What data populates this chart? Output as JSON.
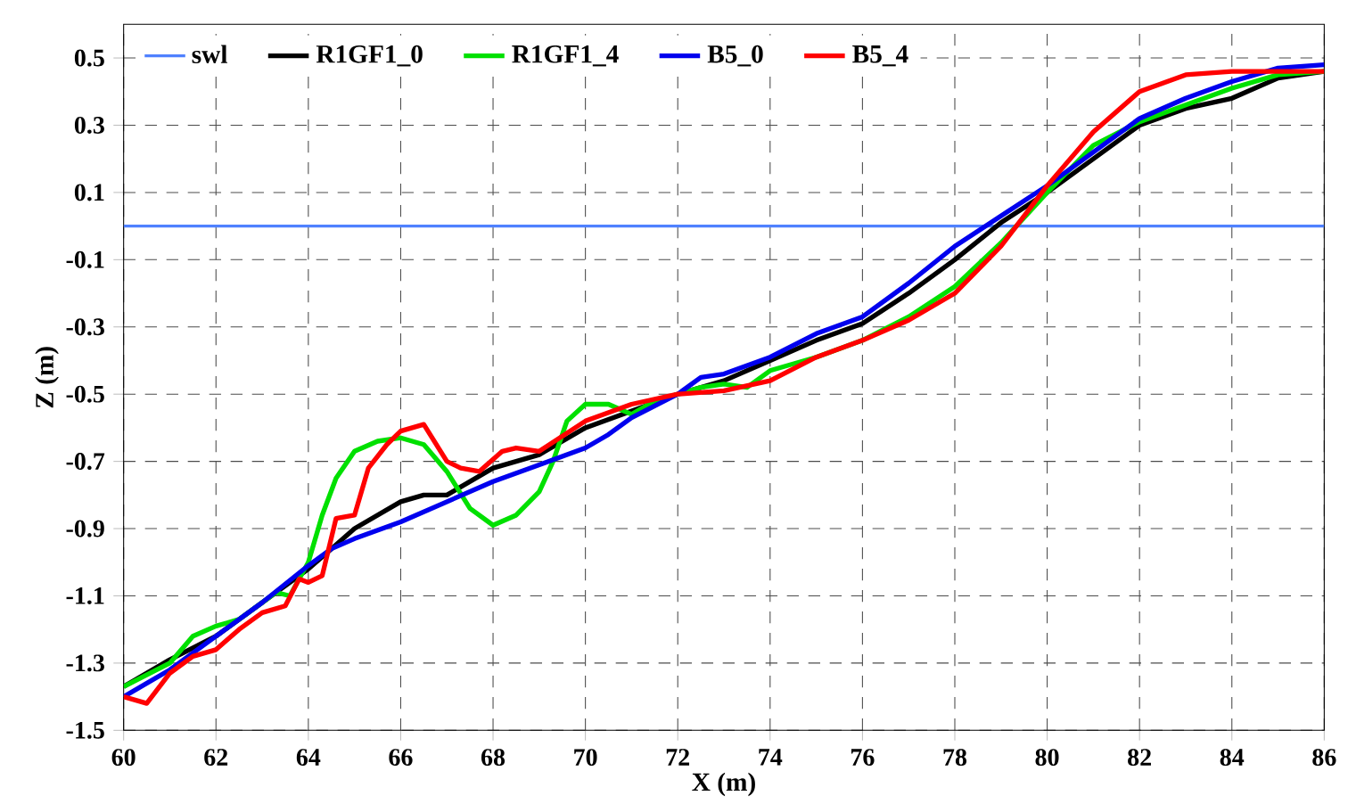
{
  "chart_data": {
    "type": "line",
    "xlabel": "X (m)",
    "ylabel": "Z (m)",
    "xlim": [
      60,
      86
    ],
    "ylim": [
      -1.5,
      0.6
    ],
    "xticks": [
      60,
      62,
      64,
      66,
      68,
      70,
      72,
      74,
      76,
      78,
      80,
      82,
      84,
      86
    ],
    "yticks": [
      -1.5,
      -1.3,
      -1.1,
      -0.9,
      -0.7,
      -0.5,
      -0.3,
      -0.1,
      0.1,
      0.3,
      0.5
    ],
    "grid": true,
    "legend": "top",
    "series": [
      {
        "name": "swl",
        "color": "#4f81ff",
        "x": [
          60,
          86
        ],
        "values": [
          0,
          0
        ]
      },
      {
        "name": "R1GF1_0",
        "color": "#000000",
        "x": [
          60,
          61,
          62,
          63,
          64,
          64.5,
          65,
          65.5,
          66,
          66.5,
          67,
          68,
          69,
          70,
          71,
          72,
          73,
          74,
          75,
          76,
          77,
          78,
          79,
          80,
          81,
          82,
          83,
          84,
          85,
          86
        ],
        "values": [
          -1.37,
          -1.29,
          -1.22,
          -1.12,
          -1.02,
          -0.96,
          -0.9,
          -0.86,
          -0.82,
          -0.8,
          -0.8,
          -0.72,
          -0.68,
          -0.6,
          -0.55,
          -0.5,
          -0.46,
          -0.4,
          -0.34,
          -0.29,
          -0.2,
          -0.1,
          0.01,
          0.1,
          0.2,
          0.3,
          0.35,
          0.38,
          0.44,
          0.46
        ]
      },
      {
        "name": "R1GF1_4",
        "color": "#00e000",
        "x": [
          60,
          61,
          61.5,
          62,
          62.5,
          63,
          63.3,
          63.6,
          64,
          64.3,
          64.6,
          65,
          65.5,
          66,
          66.5,
          67,
          67.5,
          68,
          68.5,
          69,
          69.3,
          69.6,
          70,
          70.5,
          71,
          71.5,
          72,
          72.5,
          73,
          73.5,
          74,
          75,
          76,
          77,
          78,
          79,
          80,
          81,
          82,
          83,
          84,
          85,
          86
        ],
        "values": [
          -1.37,
          -1.3,
          -1.22,
          -1.19,
          -1.17,
          -1.12,
          -1.09,
          -1.1,
          -1.0,
          -0.86,
          -0.75,
          -0.67,
          -0.64,
          -0.63,
          -0.65,
          -0.73,
          -0.84,
          -0.89,
          -0.86,
          -0.79,
          -0.7,
          -0.58,
          -0.53,
          -0.53,
          -0.56,
          -0.52,
          -0.5,
          -0.48,
          -0.47,
          -0.48,
          -0.43,
          -0.39,
          -0.34,
          -0.27,
          -0.18,
          -0.05,
          0.1,
          0.24,
          0.31,
          0.36,
          0.41,
          0.45,
          0.46
        ]
      },
      {
        "name": "B5_0",
        "color": "#0000ee",
        "x": [
          60,
          61,
          62,
          63,
          64,
          64.5,
          65,
          66,
          67,
          68,
          69,
          70,
          70.5,
          71,
          72,
          72.5,
          73,
          74,
          75,
          76,
          77,
          78,
          79,
          80,
          81,
          82,
          83,
          84,
          85,
          86
        ],
        "values": [
          -1.4,
          -1.32,
          -1.22,
          -1.12,
          -1.01,
          -0.96,
          -0.93,
          -0.88,
          -0.82,
          -0.76,
          -0.71,
          -0.66,
          -0.62,
          -0.57,
          -0.5,
          -0.45,
          -0.44,
          -0.39,
          -0.32,
          -0.27,
          -0.17,
          -0.06,
          0.03,
          0.12,
          0.22,
          0.32,
          0.38,
          0.43,
          0.47,
          0.48
        ]
      },
      {
        "name": "B5_4",
        "color": "#ff0000",
        "x": [
          60,
          60.5,
          61,
          61.5,
          62,
          62.5,
          63,
          63.5,
          63.8,
          64,
          64.3,
          64.6,
          65,
          65.3,
          65.7,
          66,
          66.5,
          67,
          67.3,
          67.7,
          68.2,
          68.5,
          69,
          70,
          71,
          72,
          73,
          74,
          75,
          76,
          77,
          78,
          79,
          80,
          81,
          82,
          83,
          84,
          86
        ],
        "values": [
          -1.4,
          -1.42,
          -1.33,
          -1.28,
          -1.26,
          -1.2,
          -1.15,
          -1.13,
          -1.05,
          -1.06,
          -1.04,
          -0.87,
          -0.86,
          -0.72,
          -0.65,
          -0.61,
          -0.59,
          -0.7,
          -0.72,
          -0.73,
          -0.67,
          -0.66,
          -0.67,
          -0.58,
          -0.53,
          -0.5,
          -0.49,
          -0.46,
          -0.39,
          -0.34,
          -0.28,
          -0.2,
          -0.06,
          0.12,
          0.28,
          0.4,
          0.45,
          0.46,
          0.46
        ]
      }
    ]
  }
}
